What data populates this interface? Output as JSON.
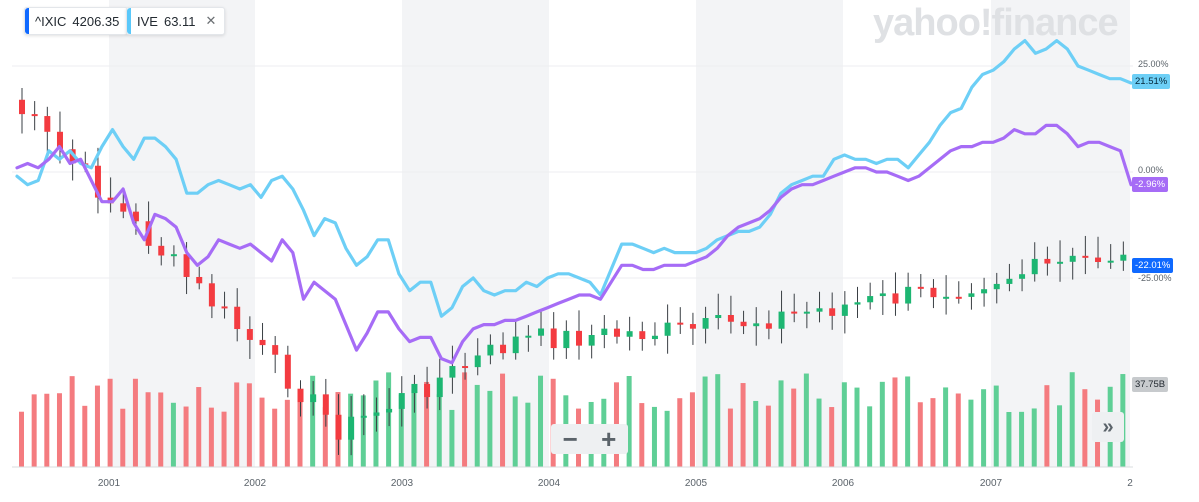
{
  "legend": [
    {
      "symbol": "^IXIC",
      "value": "4206.35",
      "color": "#0f69ff"
    },
    {
      "symbol": "IVE",
      "value": "63.11",
      "color": "#5ac8fa"
    }
  ],
  "close_glyph": "✕",
  "watermark": "yahoo!finance",
  "zoom": {
    "minus": "−",
    "plus": "+"
  },
  "expand_glyph": "»",
  "y_axis": {
    "labels": [
      "25.00%",
      "0.00%",
      "-25.00%"
    ]
  },
  "badges": {
    "ive": "21.51%",
    "ixic": "-2.96%",
    "candle": "-22.01%",
    "volume": "37.75B"
  },
  "x_axis": {
    "labels": [
      "2001",
      "2002",
      "2003",
      "2004",
      "2005",
      "2006",
      "2007",
      "2"
    ]
  },
  "colors": {
    "ive": "#6dcff6",
    "ixic": "#a66cf6",
    "up": "#1db672",
    "down": "#f33b40",
    "vol_up": "#5fcf96",
    "vol_down": "#f47b7f"
  },
  "chart_data": {
    "type": "line",
    "y_unit": "percent change",
    "ylim": [
      -40,
      34
    ],
    "series": [
      {
        "name": "IVE",
        "y": [
          -1,
          -3,
          -2,
          5,
          3,
          5,
          2,
          1,
          6,
          10,
          6,
          3,
          8,
          8,
          6,
          3,
          -5,
          -5,
          -3,
          -2,
          -3,
          -4,
          -3,
          -6,
          -2,
          -1,
          -4,
          -9,
          -15,
          -11,
          -12,
          -18,
          -22,
          -20,
          -16,
          -16,
          -24,
          -28,
          -26,
          -26,
          -34,
          -32,
          -27,
          -25,
          -28,
          -29,
          -28,
          -28,
          -26,
          -27,
          -25,
          -24,
          -24,
          -25,
          -26,
          -29,
          -23,
          -17,
          -17,
          -18,
          -19,
          -18,
          -19,
          -19,
          -19,
          -18,
          -16,
          -15,
          -14,
          -14,
          -13,
          -10,
          -5,
          -3,
          -2,
          -1,
          -1,
          3,
          4,
          3,
          3,
          2,
          3,
          3,
          1,
          4,
          7,
          11,
          14,
          15,
          20,
          23,
          24,
          26,
          29,
          31,
          28,
          29,
          31,
          29,
          25,
          24,
          23,
          22,
          22,
          21
        ]
      },
      {
        "name": "^IXIC",
        "y": [
          1,
          2,
          1,
          3,
          6,
          2,
          3,
          -2,
          -7,
          -7,
          -4,
          -12,
          -16,
          -10,
          -11,
          -13,
          -19,
          -22,
          -20,
          -16,
          -17,
          -18,
          -17,
          -19,
          -21,
          -16,
          -19,
          -30,
          -26,
          -28,
          -30,
          -36,
          -42,
          -38,
          -33,
          -33,
          -37,
          -40,
          -39,
          -39,
          -44,
          -45,
          -40,
          -37,
          -36,
          -36,
          -35,
          -35,
          -34,
          -33,
          -32,
          -31,
          -30,
          -29,
          -29,
          -30,
          -26,
          -22,
          -22,
          -23,
          -23,
          -22,
          -22,
          -22,
          -21,
          -20,
          -18,
          -15,
          -13,
          -12,
          -11,
          -9,
          -6,
          -4,
          -3,
          -3,
          -2,
          -1,
          0,
          1,
          1,
          0,
          0,
          -1,
          -2,
          -1,
          1,
          3,
          5,
          6,
          6,
          7,
          7,
          8,
          10,
          9,
          9,
          11,
          11,
          9,
          6,
          7,
          7,
          6,
          5,
          -3
        ]
      }
    ]
  }
}
